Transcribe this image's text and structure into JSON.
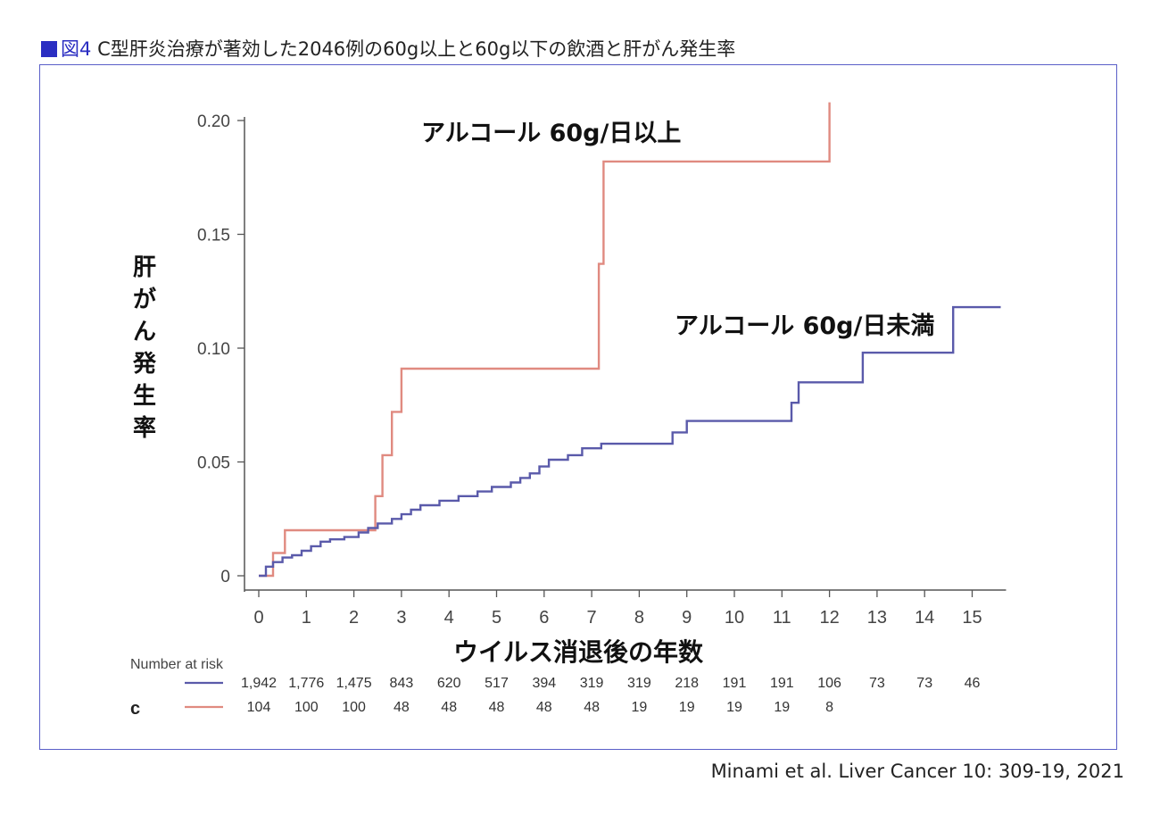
{
  "figure_title": {
    "label": "図4",
    "text": "C型肝炎治療が著効した2046例の60g以上と60g以下の飲酒と肝がん発生率"
  },
  "citation": "Minami et al. Liver Cancer 10: 309-19, 2021",
  "colors": {
    "accent": "#2b2ec2",
    "frame": "#5a5fc8"
  },
  "chart_data": {
    "type": "line",
    "step": true,
    "ylabel": "肝がん発生率",
    "xlabel": "ウイルス消退後の年数",
    "xlim": [
      0,
      15.6
    ],
    "ylim": [
      0,
      0.2
    ],
    "xticks": [
      0,
      1,
      2,
      3,
      4,
      5,
      6,
      7,
      8,
      9,
      10,
      11,
      12,
      13,
      14,
      15
    ],
    "yticks": [
      0,
      0.05,
      0.1,
      0.15,
      0.2
    ],
    "ytick_labels": [
      "0",
      "0.05",
      "0.10",
      "0.15",
      "0.20"
    ],
    "grid": false,
    "series": [
      {
        "name": "アルコール 60g/日以上",
        "color": "#e08a80",
        "x": [
          0,
          0.3,
          0.55,
          2.3,
          2.45,
          2.6,
          2.8,
          3.0,
          7.15,
          7.25,
          7.35,
          12.0,
          12.0
        ],
        "y": [
          0,
          0.01,
          0.02,
          0.02,
          0.035,
          0.053,
          0.072,
          0.091,
          0.137,
          0.182,
          0.182,
          0.182,
          0.208
        ]
      },
      {
        "name": "アルコール 60g/日未満",
        "color": "#5a5aaa",
        "x": [
          0,
          0.15,
          0.3,
          0.5,
          0.7,
          0.9,
          1.1,
          1.3,
          1.5,
          1.8,
          2.1,
          2.3,
          2.5,
          2.8,
          3.0,
          3.2,
          3.4,
          3.8,
          4.2,
          4.6,
          4.9,
          5.3,
          5.5,
          5.7,
          5.9,
          6.1,
          6.5,
          6.8,
          7.2,
          8.7,
          9.0,
          11.2,
          11.35,
          12.7,
          14.6,
          15.6
        ],
        "y": [
          0,
          0.004,
          0.006,
          0.008,
          0.009,
          0.011,
          0.013,
          0.015,
          0.016,
          0.017,
          0.019,
          0.021,
          0.023,
          0.025,
          0.027,
          0.029,
          0.031,
          0.033,
          0.035,
          0.037,
          0.039,
          0.041,
          0.043,
          0.045,
          0.048,
          0.051,
          0.053,
          0.056,
          0.058,
          0.063,
          0.068,
          0.076,
          0.085,
          0.098,
          0.118,
          0.118
        ]
      }
    ],
    "number_at_risk": {
      "heading": "Number at risk",
      "group_label": "c",
      "rows": [
        {
          "color": "#5a5aaa",
          "values": [
            "1,942",
            "1,776",
            "1,475",
            "843",
            "620",
            "517",
            "394",
            "319",
            "319",
            "218",
            "191",
            "191",
            "106",
            "73",
            "73",
            "46"
          ]
        },
        {
          "color": "#e08a80",
          "values": [
            "104",
            "100",
            "100",
            "48",
            "48",
            "48",
            "48",
            "48",
            "19",
            "19",
            "19",
            "19",
            "8"
          ]
        }
      ]
    }
  }
}
